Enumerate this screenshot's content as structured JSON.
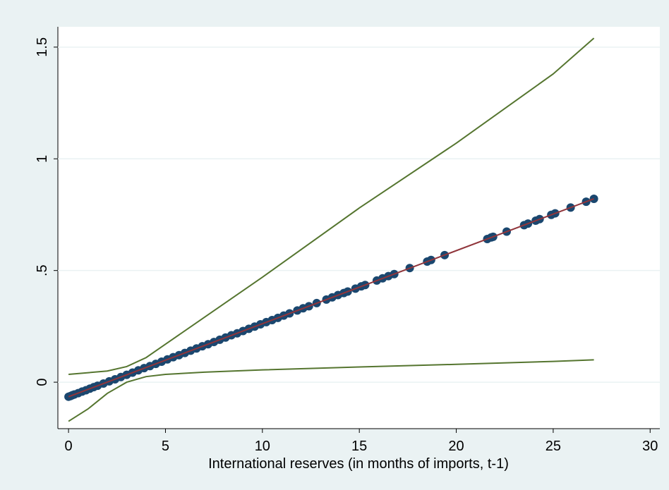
{
  "chart_data": {
    "type": "scatter",
    "xlabel": "International reserves (in months of imports, t-1)",
    "xlim": [
      -0.55,
      30.5
    ],
    "ylim": [
      -0.208,
      1.591
    ],
    "xticks": [
      0,
      5,
      10,
      15,
      20,
      25,
      30
    ],
    "yticks": [
      0,
      {
        "value": 0.5,
        "label": ".5"
      },
      1,
      1.5
    ],
    "grid": true,
    "series": [
      {
        "type": "line",
        "color": "#55752f",
        "x": [
          0,
          2,
          3,
          4,
          5,
          7,
          10,
          15,
          20,
          25,
          27.1
        ],
        "values": [
          0.035,
          0.05,
          0.07,
          0.11,
          0.17,
          0.29,
          0.47,
          0.78,
          1.07,
          1.38,
          1.54
        ]
      },
      {
        "type": "line",
        "color": "#55752f",
        "x": [
          0,
          1,
          2,
          3,
          4,
          5,
          7,
          10,
          15,
          20,
          25,
          27.1
        ],
        "values": [
          -0.175,
          -0.12,
          -0.05,
          0.0,
          0.025,
          0.035,
          0.045,
          0.055,
          0.068,
          0.08,
          0.093,
          0.1
        ]
      },
      {
        "type": "scatter",
        "color": "#1a476f",
        "x": [
          0,
          0.1,
          0.2,
          0.3,
          0.5,
          0.7,
          0.9,
          1.1,
          1.3,
          1.5,
          1.8,
          2.1,
          2.4,
          2.7,
          3.0,
          3.3,
          3.6,
          3.9,
          4.2,
          4.5,
          4.8,
          5.1,
          5.4,
          5.7,
          6.0,
          6.3,
          6.6,
          6.9,
          7.2,
          7.5,
          7.8,
          8.1,
          8.4,
          8.7,
          9.0,
          9.3,
          9.6,
          9.9,
          10.2,
          10.5,
          10.8,
          11.1,
          11.4,
          11.8,
          12.1,
          12.4,
          12.8,
          13.3,
          13.6,
          13.9,
          14.2,
          14.4,
          14.8,
          15.1,
          15.3,
          15.9,
          16.2,
          16.5,
          16.8,
          17.6,
          18.5,
          18.7,
          19.4,
          21.6,
          21.8,
          21.9,
          22.6,
          23.5,
          23.7,
          24.1,
          24.3,
          24.9,
          25.1,
          25.9,
          26.7,
          27.1
        ],
        "values": [
          -0.065,
          -0.062,
          -0.058,
          -0.055,
          -0.049,
          -0.042,
          -0.036,
          -0.029,
          -0.022,
          -0.016,
          -0.006,
          0.004,
          0.013,
          0.023,
          0.033,
          0.043,
          0.053,
          0.063,
          0.072,
          0.082,
          0.092,
          0.102,
          0.112,
          0.121,
          0.131,
          0.141,
          0.151,
          0.161,
          0.17,
          0.18,
          0.19,
          0.2,
          0.21,
          0.219,
          0.229,
          0.239,
          0.249,
          0.259,
          0.269,
          0.278,
          0.288,
          0.298,
          0.308,
          0.321,
          0.331,
          0.34,
          0.354,
          0.37,
          0.38,
          0.39,
          0.399,
          0.406,
          0.419,
          0.429,
          0.435,
          0.455,
          0.465,
          0.475,
          0.484,
          0.511,
          0.54,
          0.547,
          0.569,
          0.641,
          0.648,
          0.651,
          0.674,
          0.703,
          0.71,
          0.723,
          0.73,
          0.749,
          0.756,
          0.782,
          0.808,
          0.821
        ]
      },
      {
        "type": "line",
        "color": "#90353b",
        "x": [
          0,
          27.1
        ],
        "values": [
          -0.065,
          0.821
        ]
      }
    ]
  }
}
